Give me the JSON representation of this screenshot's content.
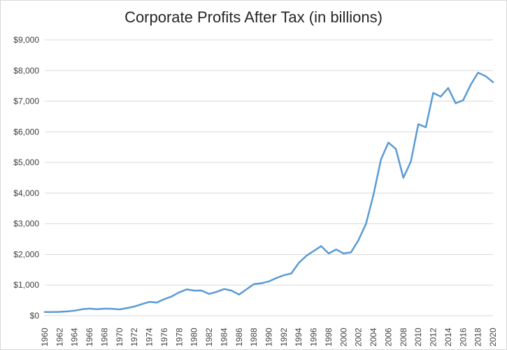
{
  "chart_data": {
    "type": "line",
    "title": "Corporate Profits After Tax (in billions)",
    "xlabel": "",
    "ylabel": "",
    "grid": true,
    "legend": "none",
    "ylim": [
      0,
      9000
    ],
    "y_ticks": [
      "$0",
      "$1,000",
      "$2,000",
      "$3,000",
      "$4,000",
      "$5,000",
      "$6,000",
      "$7,000",
      "$8,000",
      "$9,000"
    ],
    "y_tick_values": [
      0,
      1000,
      2000,
      3000,
      4000,
      5000,
      6000,
      7000,
      8000,
      9000
    ],
    "x_ticks": [
      "1960",
      "1962",
      "1964",
      "1966",
      "1968",
      "1970",
      "1972",
      "1974",
      "1976",
      "1978",
      "1980",
      "1982",
      "1984",
      "1986",
      "1988",
      "1990",
      "1992",
      "1994",
      "1996",
      "1998",
      "2000",
      "2002",
      "2004",
      "2006",
      "2008",
      "2010",
      "2012",
      "2014",
      "2016",
      "2018",
      "2020"
    ],
    "x": [
      1960,
      1961,
      1962,
      1963,
      1964,
      1965,
      1966,
      1967,
      1968,
      1969,
      1970,
      1971,
      1972,
      1973,
      1974,
      1975,
      1976,
      1977,
      1978,
      1979,
      1980,
      1981,
      1982,
      1983,
      1984,
      1985,
      1986,
      1987,
      1988,
      1989,
      1990,
      1991,
      1992,
      1993,
      1994,
      1995,
      1996,
      1997,
      1998,
      1999,
      2000,
      2001,
      2002,
      2003,
      2004,
      2005,
      2006,
      2007,
      2008,
      2009,
      2010,
      2011,
      2012,
      2013,
      2014,
      2015,
      2016,
      2017,
      2018,
      2019,
      2020
    ],
    "series": [
      {
        "color": "#5b9bd5",
        "values": [
          120,
          120,
          125,
          140,
          165,
          210,
          230,
          210,
          230,
          225,
          205,
          250,
          300,
          380,
          450,
          430,
          540,
          630,
          760,
          860,
          820,
          820,
          710,
          780,
          870,
          820,
          690,
          860,
          1030,
          1060,
          1120,
          1230,
          1320,
          1380,
          1720,
          1950,
          2110,
          2270,
          2030,
          2160,
          2030,
          2070,
          2470,
          3000,
          3950,
          5100,
          5650,
          5440,
          4500,
          5030,
          6250,
          6150,
          7270,
          7150,
          7430,
          6930,
          7030,
          7530,
          7930,
          7820,
          7620
        ]
      }
    ]
  }
}
